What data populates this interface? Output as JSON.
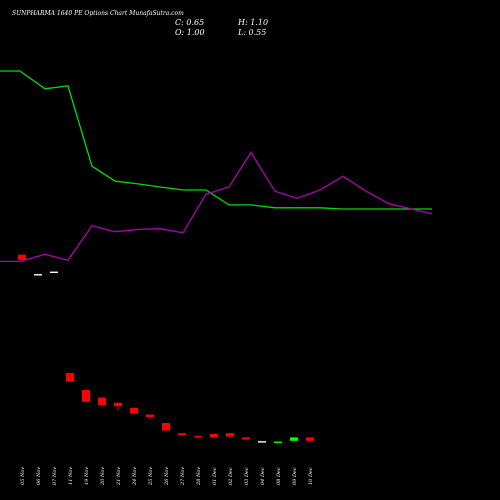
{
  "title": "SUNPHARMA 1640  PE Options  Chart MunafaSutra.com",
  "ohlc": {
    "open_label": "O: 1.00",
    "high_label": "H: 1.10",
    "low_label": "L: 0.55",
    "close_label": "C: 0.65"
  },
  "colors": {
    "background": "#000000",
    "bear_candle": "#ff0000",
    "bull_candle": "#00ff00",
    "neutral_candle": "#ffffff",
    "line_green": "#00dd00",
    "line_magenta": "#b000b0"
  },
  "chart_data": {
    "type": "candlestick",
    "categories": [
      "05 Nov",
      "06 Nov",
      "07 Nov",
      "11 Nov",
      "19 Nov",
      "20 Nov",
      "21 Nov",
      "24 Nov",
      "25 Nov",
      "26 Nov",
      "27 Nov",
      "28 Nov",
      "01 Dec",
      "02 Dec",
      "03 Dec",
      "04 Dec",
      "08 Dec",
      "09 Dec",
      "10 Dec"
    ],
    "candles": [
      {
        "open": 23.8,
        "high": 23.8,
        "low": 23.2,
        "close": 23.2,
        "color": "bear"
      },
      {
        "open": 21.5,
        "high": 21.5,
        "low": 21.5,
        "close": 21.5,
        "color": "neutral"
      },
      {
        "open": 21.8,
        "high": 21.8,
        "low": 21.8,
        "close": 21.8,
        "color": "neutral"
      },
      {
        "open": 9.8,
        "high": 9.8,
        "low": 8.8,
        "close": 8.8,
        "color": "bear"
      },
      {
        "open": 7.8,
        "high": 7.8,
        "low": 6.4,
        "close": 6.4,
        "color": "bear"
      },
      {
        "open": 6.9,
        "high": 6.9,
        "low": 6.0,
        "close": 6.0,
        "color": "bear"
      },
      {
        "open": 6.3,
        "high": 6.3,
        "low": 5.4,
        "close": 5.9,
        "color": "bear"
      },
      {
        "open": 5.7,
        "high": 5.7,
        "low": 5.0,
        "close": 5.0,
        "color": "bear"
      },
      {
        "open": 4.9,
        "high": 4.9,
        "low": 4.4,
        "close": 4.6,
        "color": "bear"
      },
      {
        "open": 3.9,
        "high": 3.9,
        "low": 3.0,
        "close": 3.0,
        "color": "bear"
      },
      {
        "open": 2.7,
        "high": 2.7,
        "low": 2.45,
        "close": 2.45,
        "color": "bear"
      },
      {
        "open": 2.35,
        "high": 2.35,
        "low": 2.2,
        "close": 2.2,
        "color": "bear"
      },
      {
        "open": 2.6,
        "high": 2.6,
        "low": 2.2,
        "close": 2.2,
        "color": "bear"
      },
      {
        "open": 2.7,
        "high": 2.7,
        "low": 2.3,
        "close": 2.3,
        "color": "bear"
      },
      {
        "open": 2.2,
        "high": 2.2,
        "low": 1.95,
        "close": 1.95,
        "color": "bear"
      },
      {
        "open": 1.75,
        "high": 1.75,
        "low": 1.75,
        "close": 1.75,
        "color": "neutral"
      },
      {
        "open": 1.7,
        "high": 1.7,
        "low": 1.6,
        "close": 1.6,
        "color": "bull"
      },
      {
        "open": 1.8,
        "high": 2.2,
        "low": 1.8,
        "close": 2.2,
        "color": "bull"
      },
      {
        "open": 2.2,
        "high": 2.2,
        "low": 1.8,
        "close": 1.8,
        "color": "bear"
      }
    ],
    "lines": [
      {
        "color": "green",
        "values": [
          100,
          100,
          97,
          97.5,
          84,
          81.5,
          81,
          80.5,
          80,
          80,
          77.5,
          77.5,
          77,
          77,
          77,
          76.8,
          76.8,
          76.8,
          76.8
        ]
      },
      {
        "color": "magenta",
        "values": [
          68,
          68,
          69.2,
          68.2,
          74,
          73,
          73.4,
          73.5,
          72.8,
          79.3,
          80.5,
          86.3,
          79.8,
          78.6,
          80,
          82.3,
          79.8,
          77.7,
          76
        ]
      }
    ]
  }
}
